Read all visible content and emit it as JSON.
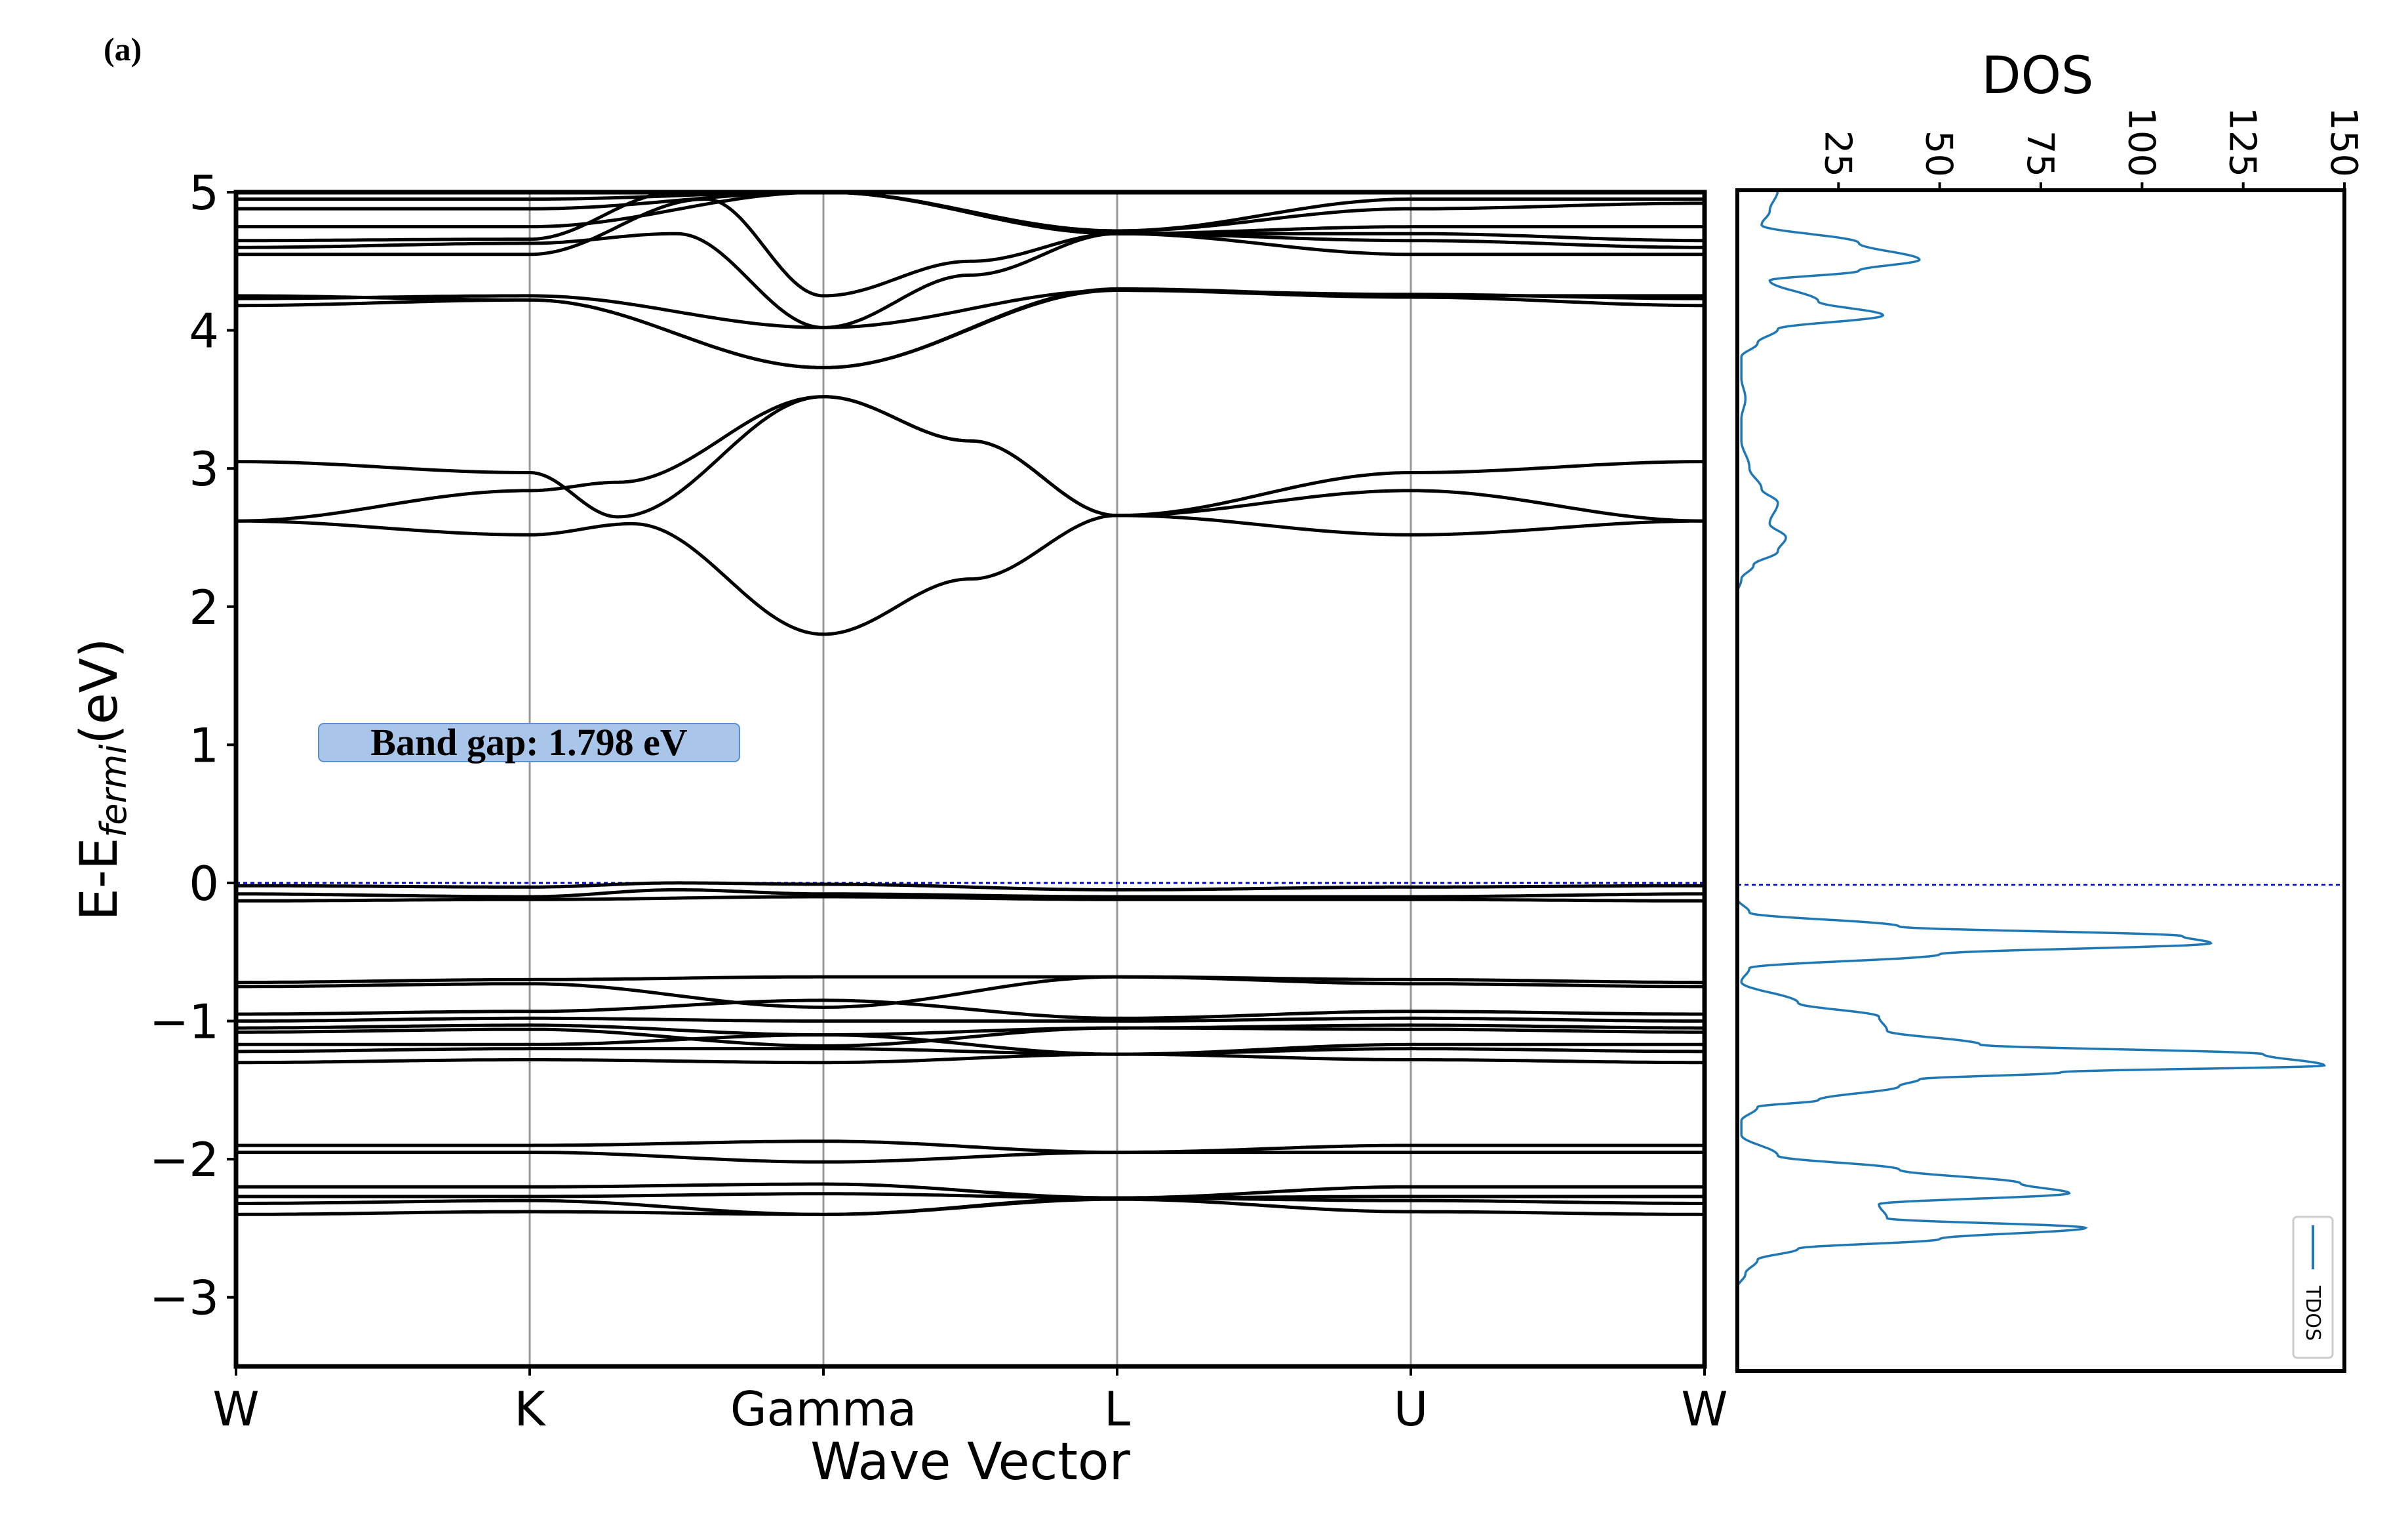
{
  "panel_label": "(a)",
  "chart_data": [
    {
      "type": "line",
      "xlabel": "Wave Vector",
      "ylabel_main": "E-E",
      "ylabel_sub": "fermi",
      "ylabel_unit": "(eV)",
      "ylim": [
        -3.5,
        5
      ],
      "yticks": [
        -3,
        -2,
        -1,
        0,
        1,
        2,
        3,
        4,
        5
      ],
      "ytick_labels": [
        "−3",
        "−2",
        "−1",
        "0",
        "1",
        "2",
        "3",
        "4",
        "5"
      ],
      "kpoints": [
        "W",
        "K",
        "Gamma",
        "L",
        "U",
        "W"
      ],
      "kpoint_positions": [
        0,
        1,
        2,
        3,
        4,
        5
      ],
      "fermi_level": 0,
      "annotation": "Band gap: 1.798 eV",
      "colors": {
        "bands": "#000000",
        "fermi": "#0000cc",
        "kline": "#999999",
        "annotation_fill": "#a9c6ea",
        "annotation_edge": "#5b8fd1"
      },
      "bands": [
        {
          "name": "c1",
          "x": [
            0,
            1,
            1.35,
            2,
            2.5,
            3,
            4,
            5
          ],
          "y": [
            2.62,
            2.52,
            2.6,
            1.8,
            2.2,
            2.66,
            2.52,
            2.62
          ]
        },
        {
          "name": "c2",
          "x": [
            0,
            1,
            1.3,
            2,
            2.5,
            3,
            4,
            5
          ],
          "y": [
            2.62,
            2.84,
            2.9,
            3.52,
            3.2,
            2.66,
            2.84,
            2.62
          ]
        },
        {
          "name": "c3",
          "x": [
            0,
            1,
            1.3,
            2,
            2.5,
            3,
            4,
            5
          ],
          "y": [
            3.05,
            2.97,
            2.65,
            3.52,
            3.2,
            2.66,
            2.97,
            3.05
          ]
        },
        {
          "name": "c4",
          "x": [
            0,
            1,
            2,
            3,
            4,
            5
          ],
          "y": [
            4.18,
            4.22,
            3.73,
            4.29,
            4.24,
            4.18
          ]
        },
        {
          "name": "c5",
          "x": [
            0,
            1,
            2,
            3,
            4,
            5
          ],
          "y": [
            4.23,
            4.25,
            4.02,
            4.29,
            4.26,
            4.23
          ]
        },
        {
          "name": "c6",
          "x": [
            0,
            1,
            2,
            3,
            4,
            5
          ],
          "y": [
            4.25,
            4.22,
            3.73,
            4.3,
            4.25,
            4.25
          ]
        },
        {
          "name": "c7",
          "x": [
            0,
            1,
            1.6,
            2,
            2.5,
            3,
            4,
            5
          ],
          "y": [
            4.55,
            4.55,
            4.95,
            4.25,
            4.5,
            4.7,
            4.55,
            4.55
          ]
        },
        {
          "name": "c8",
          "x": [
            0,
            1,
            1.5,
            2,
            2.5,
            3,
            4,
            5
          ],
          "y": [
            4.6,
            4.63,
            4.7,
            4.02,
            4.4,
            4.7,
            4.65,
            4.6
          ]
        },
        {
          "name": "c9",
          "x": [
            0,
            1,
            1.5,
            2,
            3,
            4,
            5
          ],
          "y": [
            4.65,
            4.66,
            5.0,
            5.0,
            4.7,
            4.7,
            4.65
          ]
        },
        {
          "name": "c10",
          "x": [
            0,
            1,
            2,
            3,
            4,
            5
          ],
          "y": [
            4.75,
            4.75,
            5.0,
            4.7,
            4.75,
            4.75
          ]
        },
        {
          "name": "c11",
          "x": [
            0,
            1,
            2,
            3,
            4,
            5
          ],
          "y": [
            4.88,
            4.88,
            5.0,
            4.72,
            4.88,
            4.92
          ]
        },
        {
          "name": "c12",
          "x": [
            0,
            1,
            2,
            3,
            4,
            5
          ],
          "y": [
            4.95,
            4.95,
            5.0,
            4.72,
            4.95,
            4.95
          ]
        },
        {
          "name": "v1",
          "x": [
            0,
            1,
            1.5,
            2,
            3,
            4,
            5
          ],
          "y": [
            -0.02,
            -0.03,
            0.0,
            -0.01,
            -0.05,
            -0.03,
            -0.02
          ]
        },
        {
          "name": "v2",
          "x": [
            0,
            1,
            1.5,
            2,
            3,
            4,
            5
          ],
          "y": [
            -0.08,
            -0.1,
            -0.05,
            -0.08,
            -0.1,
            -0.1,
            -0.08
          ]
        },
        {
          "name": "v3",
          "x": [
            0,
            1,
            2,
            3,
            4,
            5
          ],
          "y": [
            -0.13,
            -0.12,
            -0.1,
            -0.12,
            -0.12,
            -0.13
          ]
        },
        {
          "name": "v4",
          "x": [
            0,
            1,
            2,
            3,
            4,
            5
          ],
          "y": [
            -0.72,
            -0.7,
            -0.68,
            -0.68,
            -0.7,
            -0.72
          ]
        },
        {
          "name": "v5",
          "x": [
            0,
            1,
            2,
            3,
            4,
            5
          ],
          "y": [
            -0.75,
            -0.73,
            -0.9,
            -0.68,
            -0.73,
            -0.75
          ]
        },
        {
          "name": "v6",
          "x": [
            0,
            1,
            2,
            3,
            4,
            5
          ],
          "y": [
            -0.95,
            -0.93,
            -0.85,
            -0.98,
            -0.93,
            -0.95
          ]
        },
        {
          "name": "v7",
          "x": [
            0,
            1,
            2,
            3,
            4,
            5
          ],
          "y": [
            -1.0,
            -0.98,
            -1.0,
            -1.0,
            -0.98,
            -1.0
          ]
        },
        {
          "name": "v8",
          "x": [
            0,
            1,
            2,
            3,
            4,
            5
          ],
          "y": [
            -1.05,
            -1.03,
            -1.1,
            -1.05,
            -1.03,
            -1.05
          ]
        },
        {
          "name": "v9",
          "x": [
            0,
            1,
            2,
            3,
            4,
            5
          ],
          "y": [
            -1.08,
            -1.06,
            -1.18,
            -1.05,
            -1.06,
            -1.08
          ]
        },
        {
          "name": "v10",
          "x": [
            0,
            1,
            2,
            3,
            4,
            5
          ],
          "y": [
            -1.17,
            -1.17,
            -1.1,
            -1.24,
            -1.17,
            -1.17
          ]
        },
        {
          "name": "v11",
          "x": [
            0,
            1,
            2,
            3,
            4,
            5
          ],
          "y": [
            -1.22,
            -1.2,
            -1.2,
            -1.24,
            -1.2,
            -1.22
          ]
        },
        {
          "name": "v12",
          "x": [
            0,
            1,
            2,
            3,
            4,
            5
          ],
          "y": [
            -1.3,
            -1.28,
            -1.3,
            -1.24,
            -1.28,
            -1.3
          ]
        },
        {
          "name": "v13",
          "x": [
            0,
            1,
            2,
            3,
            4,
            5
          ],
          "y": [
            -1.9,
            -1.9,
            -1.87,
            -1.95,
            -1.9,
            -1.9
          ]
        },
        {
          "name": "v14",
          "x": [
            0,
            1,
            2,
            3,
            4,
            5
          ],
          "y": [
            -1.95,
            -1.95,
            -2.02,
            -1.95,
            -1.95,
            -1.95
          ]
        },
        {
          "name": "v15",
          "x": [
            0,
            1,
            2,
            3,
            4,
            5
          ],
          "y": [
            -2.2,
            -2.2,
            -2.18,
            -2.28,
            -2.2,
            -2.2
          ]
        },
        {
          "name": "v16",
          "x": [
            0,
            1,
            2,
            3,
            4,
            5
          ],
          "y": [
            -2.27,
            -2.27,
            -2.25,
            -2.28,
            -2.27,
            -2.27
          ]
        },
        {
          "name": "v17",
          "x": [
            0,
            1,
            2,
            3,
            4,
            5
          ],
          "y": [
            -2.32,
            -2.3,
            -2.4,
            -2.28,
            -2.3,
            -2.32
          ]
        },
        {
          "name": "v18",
          "x": [
            0,
            1,
            2,
            3,
            4,
            5
          ],
          "y": [
            -2.4,
            -2.38,
            -2.4,
            -2.29,
            -2.38,
            -2.4
          ]
        }
      ]
    },
    {
      "type": "line",
      "title": "DOS",
      "xlim": [
        0,
        150
      ],
      "xticks": [
        25,
        50,
        75,
        100,
        125,
        150
      ],
      "xtick_labels": [
        "25",
        "50",
        "75",
        "100",
        "125",
        "150"
      ],
      "ylim": [
        -3.5,
        5
      ],
      "fermi_level": 0,
      "legend": "TDOS",
      "legend_position": "bottom-right",
      "color": "#1f77b4",
      "series": [
        {
          "name": "TDOS",
          "y": [
            5.0,
            4.85,
            4.75,
            4.62,
            4.5,
            4.42,
            4.35,
            4.2,
            4.1,
            4.0,
            3.9,
            3.8,
            3.65,
            3.5,
            3.35,
            3.2,
            3.0,
            2.85,
            2.75,
            2.6,
            2.5,
            2.4,
            2.3,
            2.2,
            2.1,
            -0.1,
            -0.2,
            -0.3,
            -0.37,
            -0.42,
            -0.5,
            -0.6,
            -0.7,
            -0.85,
            -0.95,
            -1.05,
            -1.15,
            -1.22,
            -1.3,
            -1.35,
            -1.4,
            -1.45,
            -1.55,
            -1.6,
            -1.7,
            -1.8,
            -1.95,
            -2.05,
            -2.15,
            -2.22,
            -2.3,
            -2.4,
            -2.47,
            -2.55,
            -2.62,
            -2.7,
            -2.8,
            -2.9
          ],
          "x": [
            10,
            8,
            6,
            30,
            45,
            30,
            8,
            20,
            36,
            10,
            5,
            1,
            1,
            2,
            1,
            1,
            3,
            6,
            10,
            8,
            12,
            10,
            4,
            1,
            0,
            0,
            3,
            40,
            110,
            117,
            50,
            3,
            1,
            15,
            35,
            37,
            60,
            130,
            145,
            80,
            45,
            40,
            20,
            5,
            1,
            1,
            10,
            40,
            70,
            82,
            35,
            37,
            86,
            50,
            15,
            5,
            2,
            0
          ]
        }
      ]
    }
  ]
}
